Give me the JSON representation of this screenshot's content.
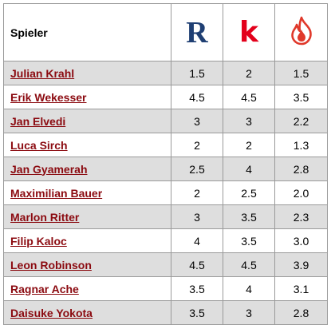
{
  "header": {
    "player_label": "Spieler",
    "logo_r": "R",
    "logo_k": "k"
  },
  "colors": {
    "link": "#8b0a10",
    "row_shade": "#dedede",
    "logo_r": "#1f3f73",
    "logo_k": "#e3001b",
    "logo_flame": "#e0392b"
  },
  "rows": [
    {
      "name": "Julian Krahl",
      "r": "1.5",
      "k": "2",
      "f": "1.5"
    },
    {
      "name": "Erik Wekesser",
      "r": "4.5",
      "k": "4.5",
      "f": "3.5"
    },
    {
      "name": "Jan Elvedi",
      "r": "3",
      "k": "3",
      "f": "2.2"
    },
    {
      "name": "Luca Sirch",
      "r": "2",
      "k": "2",
      "f": "1.3"
    },
    {
      "name": "Jan Gyamerah",
      "r": "2.5",
      "k": "4",
      "f": "2.8"
    },
    {
      "name": "Maximilian Bauer",
      "r": "2",
      "k": "2.5",
      "f": "2.0"
    },
    {
      "name": "Marlon Ritter",
      "r": "3",
      "k": "3.5",
      "f": "2.3"
    },
    {
      "name": "Filip Kaloc",
      "r": "4",
      "k": "3.5",
      "f": "3.0"
    },
    {
      "name": "Leon Robinson",
      "r": "4.5",
      "k": "4.5",
      "f": "3.9"
    },
    {
      "name": "Ragnar Ache",
      "r": "3.5",
      "k": "4",
      "f": "3.1"
    },
    {
      "name": "Daisuke Yokota",
      "r": "3.5",
      "k": "3",
      "f": "2.8"
    }
  ]
}
